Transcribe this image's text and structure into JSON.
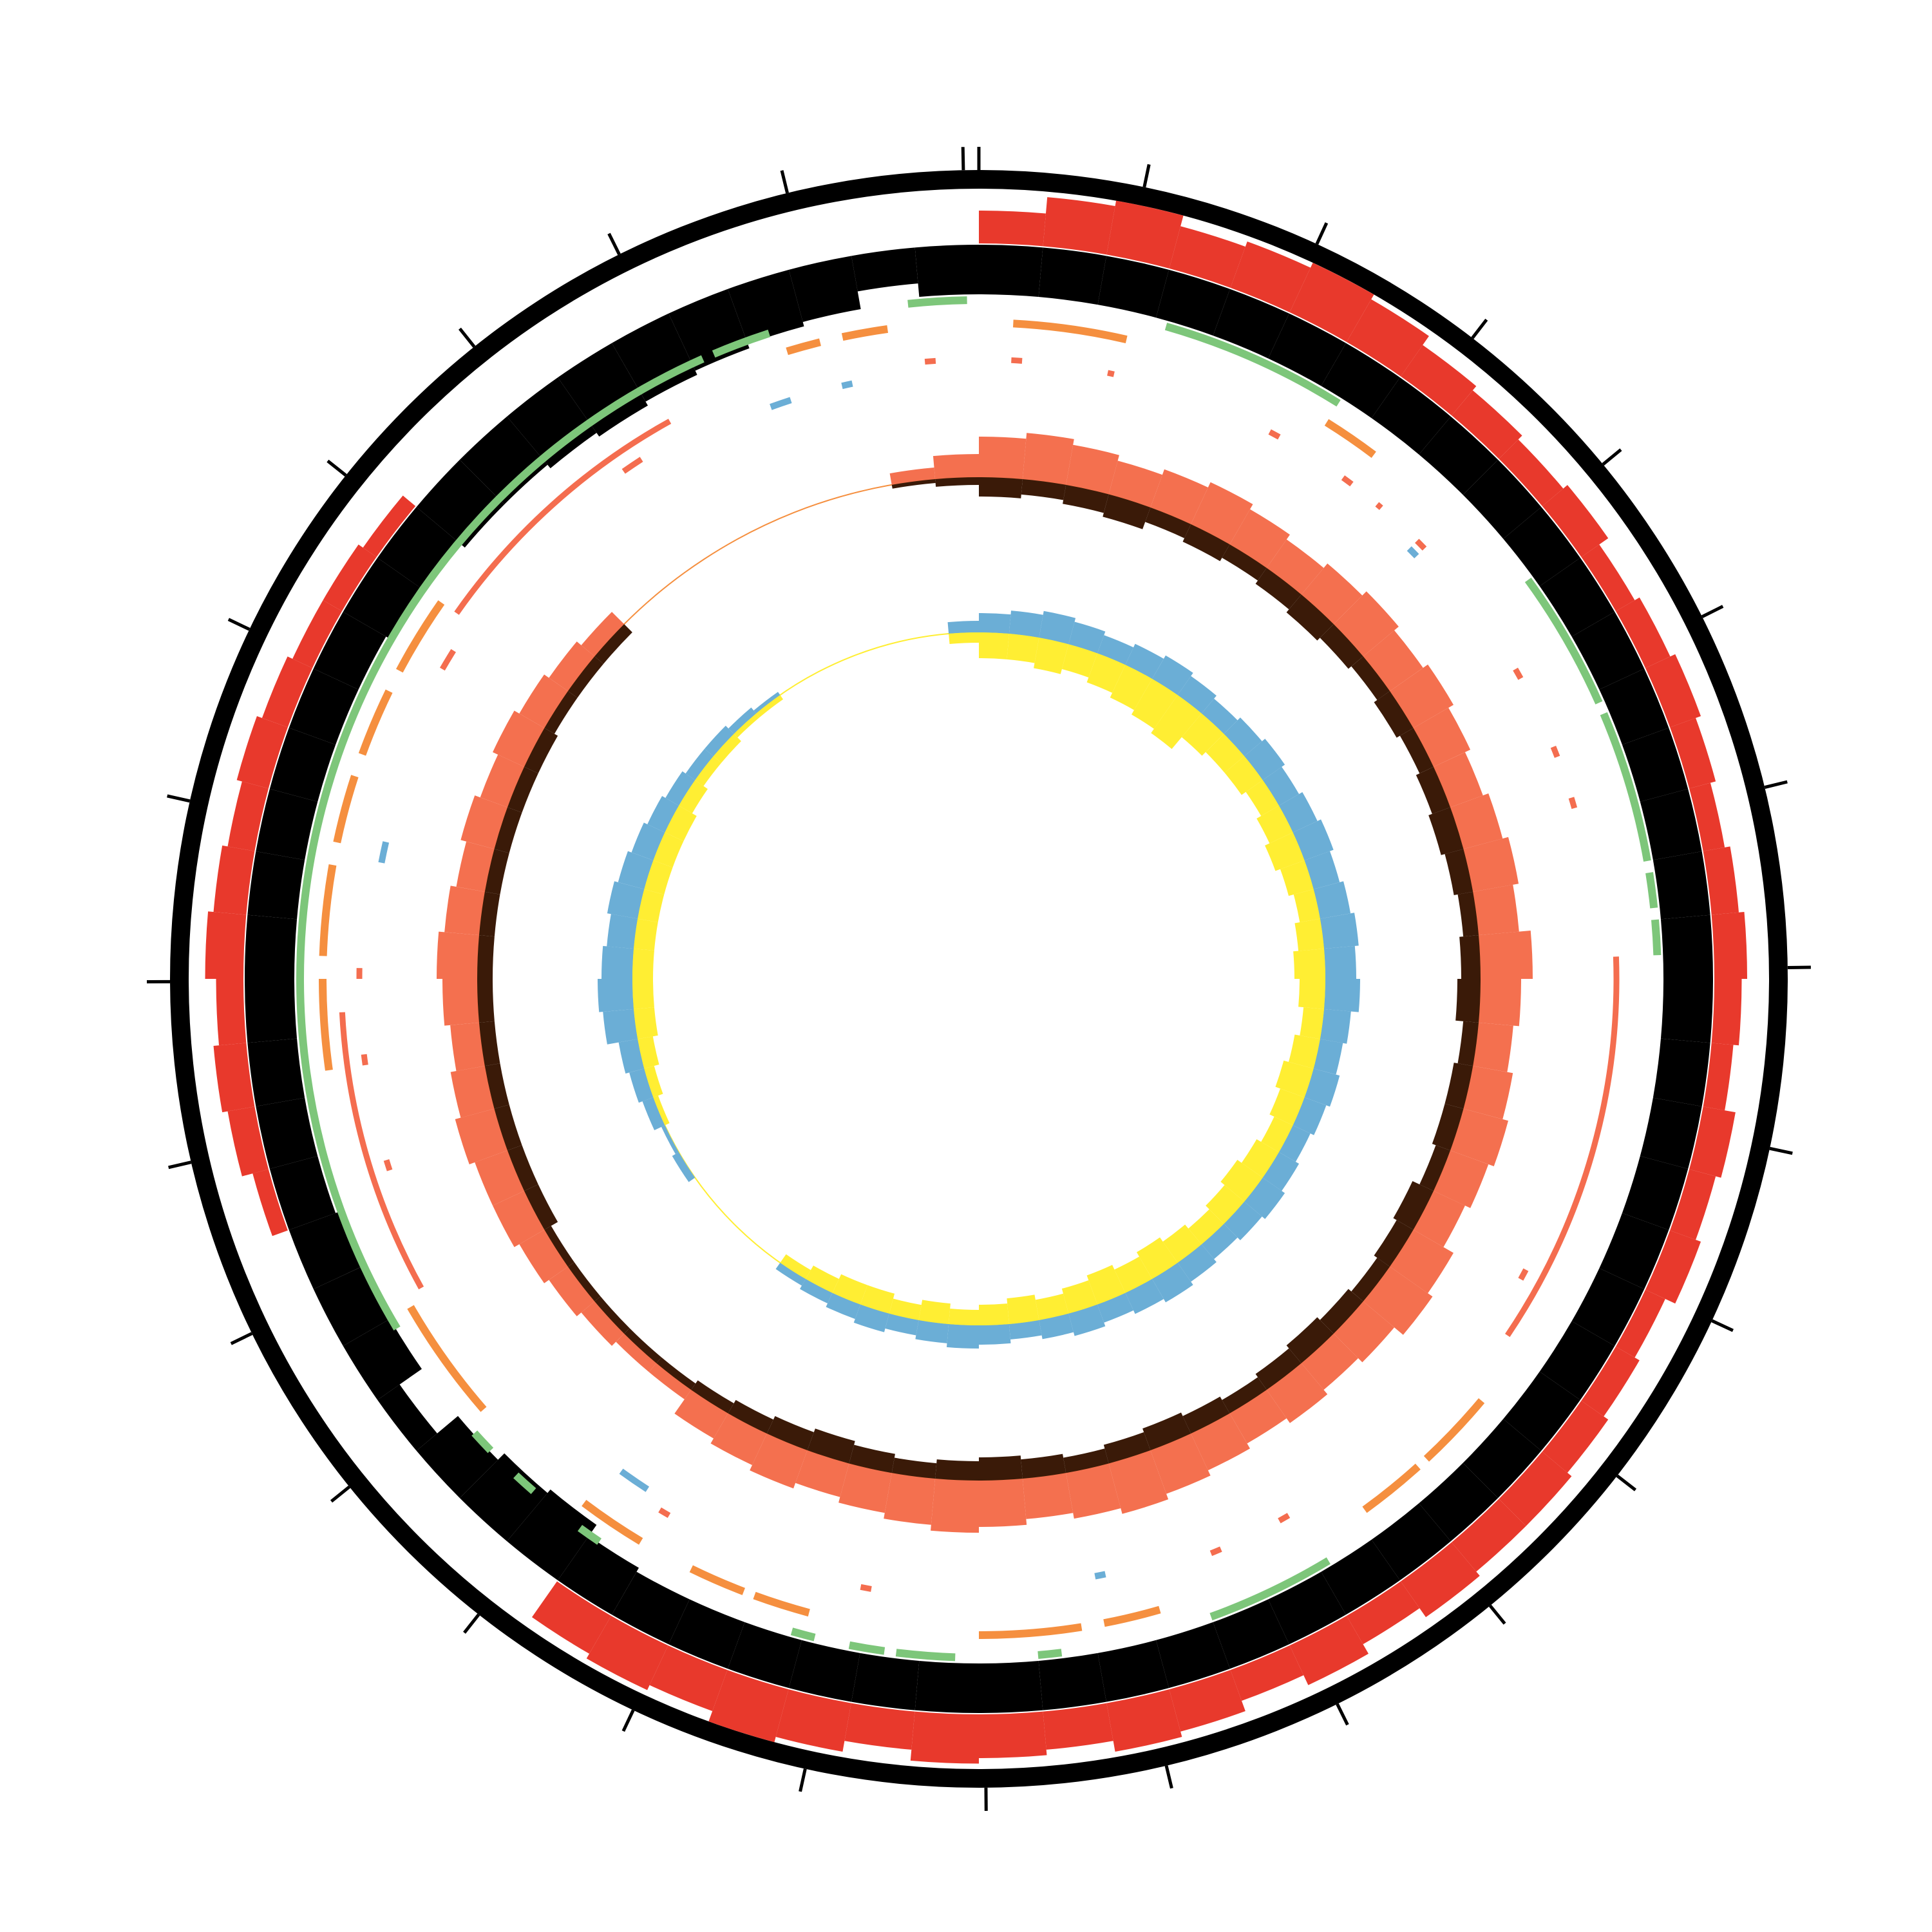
{
  "chart_data": {
    "type": "circos",
    "xlim": [
      0,
      360
    ],
    "ylim": [
      0,
      1
    ],
    "xticks": [
      0,
      11.8,
      24.7,
      37.6,
      50.5,
      63.4,
      76.3,
      89.2,
      102.1,
      115.0,
      127.9,
      140.8,
      153.7,
      166.6,
      179.5,
      192.4,
      205.3,
      218.2,
      231.1,
      244.0,
      256.9,
      269.8,
      282.7,
      295.6,
      308.5,
      321.4,
      333.6,
      346.3,
      358.9
    ],
    "bins": [
      0,
      5,
      10,
      15,
      20,
      25,
      30,
      35,
      40,
      45,
      50,
      55,
      60,
      65,
      70,
      75,
      80,
      85,
      90,
      95,
      100,
      105,
      110,
      115,
      120,
      125,
      130,
      135,
      140,
      145,
      150,
      155,
      160,
      165,
      170,
      175,
      180,
      185,
      190,
      195,
      200,
      205,
      210,
      215,
      220,
      225,
      230,
      235,
      240,
      245,
      250,
      255,
      260,
      265,
      270,
      275,
      280,
      285,
      290,
      295,
      300,
      305,
      310,
      315,
      320,
      325,
      330,
      335,
      340,
      345,
      350,
      355,
      360
    ],
    "tracks": [
      {
        "type": "histogram",
        "direction": "out",
        "color": "#e8392c",
        "values": [
          0.6,
          0.9,
          1,
          0.8,
          0.9,
          1,
          0.9,
          0.7,
          0.6,
          0.5,
          0.6,
          0.4,
          0.5,
          0.6,
          0.5,
          0.4,
          0.5,
          0.6,
          0.5,
          0.4,
          0.6,
          0.5,
          0.6,
          0.4,
          0.5,
          0.6,
          0.7,
          0.7,
          0.8,
          0.6,
          0.8,
          0.6,
          0.8,
          0.9,
          0.7,
          0.8,
          0.9,
          0.7,
          0.9,
          1,
          0.8,
          0.9,
          0.8,
          0,
          0,
          0,
          0,
          0,
          0,
          0,
          0.3,
          0.5,
          0.6,
          0.5,
          0.7,
          0.6,
          0.5,
          0.6,
          0.5,
          0.4,
          0.4,
          0.3,
          0,
          0,
          0,
          0,
          0,
          0,
          0,
          0,
          0,
          0
        ]
      },
      {
        "type": "histogram",
        "direction": "in",
        "color": "#000000",
        "values": [
          0.55,
          0.55,
          0.55,
          0.55,
          0.55,
          0.55,
          0.55,
          0.55,
          0.55,
          0.55,
          0.55,
          0.55,
          0.55,
          0.55,
          0.55,
          0.55,
          0.55,
          0.55,
          0.55,
          0.55,
          0.55,
          0.55,
          0.55,
          0.55,
          0.55,
          0.55,
          0.55,
          0.55,
          0.55,
          0.55,
          0.55,
          0.55,
          0.55,
          0.55,
          0.55,
          0.55,
          0.55,
          0.55,
          0.55,
          0.55,
          0.55,
          0.55,
          0.6,
          0.75,
          0.7,
          0.6,
          0.3,
          0.6,
          0.65,
          0.6,
          0.55,
          0.55,
          0.55,
          0.55,
          0.55,
          0.55,
          0.55,
          0.55,
          0.55,
          0.55,
          0.6,
          0.65,
          0.7,
          0.7,
          0.75,
          0.8,
          0.75,
          0.7,
          0.65,
          0.6,
          0.4,
          0.55
        ]
      },
      {
        "type": "arcs",
        "color": "#7dc67a",
        "segments": [
          [
            354,
            359
          ],
          [
            337,
            342
          ],
          [
            239,
            336
          ],
          [
            226,
            228
          ],
          [
            221,
            223
          ],
          [
            214,
            216
          ],
          [
            194,
            196
          ],
          [
            188,
            191
          ],
          [
            182,
            187
          ],
          [
            173,
            175
          ],
          [
            149,
            160
          ],
          [
            54,
            66
          ],
          [
            67,
            80
          ],
          [
            81,
            84
          ],
          [
            85,
            88
          ],
          [
            16,
            32
          ]
        ]
      },
      {
        "type": "arcs",
        "color": "#f58f3f",
        "segments": [
          [
            343,
            346
          ],
          [
            348,
            352
          ],
          [
            3,
            13
          ],
          [
            32,
            37
          ],
          [
            130,
            137
          ],
          [
            138,
            144
          ],
          [
            164,
            169
          ],
          [
            171,
            180
          ],
          [
            195,
            200
          ],
          [
            201,
            206
          ],
          [
            211,
            217
          ],
          [
            229,
            240
          ],
          [
            262,
            270
          ],
          [
            272,
            280
          ],
          [
            282,
            288
          ],
          [
            290,
            296
          ],
          [
            298,
            305
          ]
        ]
      },
      {
        "type": "arcs",
        "color": "#f46d4f",
        "segments": [
          [
            88,
            124
          ],
          [
            305,
            331
          ],
          [
            241,
            267
          ]
        ]
      },
      {
        "type": "arcs",
        "color": "#f46d4f",
        "segments": [
          [
            355,
            356
          ],
          [
            3,
            4
          ],
          [
            12,
            12.6
          ],
          [
            28,
            29
          ],
          [
            36,
            37
          ],
          [
            40,
            40.5
          ],
          [
            45,
            46
          ],
          [
            60,
            61
          ],
          [
            68,
            69
          ],
          [
            73,
            74
          ],
          [
            118,
            119
          ],
          [
            150,
            151
          ],
          [
            157,
            158
          ],
          [
            190,
            191
          ],
          [
            210,
            211
          ],
          [
            252,
            253
          ],
          [
            262,
            263
          ],
          [
            270,
            271
          ],
          [
            300,
            302
          ],
          [
            325,
            327
          ]
        ]
      },
      {
        "type": "arcs",
        "color": "#6baed6",
        "segments": [
          [
            340,
            342
          ],
          [
            347,
            348
          ],
          [
            281,
            283
          ],
          [
            213,
            216
          ],
          [
            45,
            46
          ],
          [
            168,
            169
          ]
        ]
      },
      {
        "type": "histogram",
        "direction": "out",
        "color": "#f4704f",
        "baseline_color": "#f58f3f",
        "values": [
          0.7,
          0.8,
          0.7,
          0.6,
          0.7,
          0.8,
          0.7,
          0.6,
          0.7,
          0.8,
          0.7,
          0.8,
          0.7,
          0.6,
          0.7,
          0.8,
          0.7,
          0.9,
          0.7,
          0.6,
          0.7,
          0.8,
          0.7,
          0.6,
          0.8,
          0.9,
          0.7,
          0.6,
          0.7,
          0.6,
          0.7,
          0.8,
          0.9,
          0.8,
          0.7,
          0.8,
          0.9,
          0.8,
          0.7,
          0.6,
          0.7,
          0.6,
          0.5,
          0.2,
          0.2,
          0.3,
          0.4,
          0.5,
          0.6,
          0.6,
          0.7,
          0.6,
          0.5,
          0.6,
          0.7,
          0.6,
          0.5,
          0.6,
          0.5,
          0.6,
          0.5,
          0.4,
          0.3,
          0,
          0,
          0,
          0,
          0,
          0,
          0,
          0.2,
          0.4
        ]
      },
      {
        "type": "histogram",
        "direction": "in",
        "color": "#3a1a08",
        "values": [
          0.5,
          0.4,
          0.5,
          0.6,
          0.4,
          0.5,
          0.4,
          0.5,
          0.6,
          0.5,
          0.4,
          0.5,
          0.4,
          0.5,
          0.6,
          0.5,
          0.4,
          0.5,
          0.6,
          0.4,
          0.5,
          0.5,
          0.4,
          0.6,
          0.5,
          0.4,
          0.5,
          0.6,
          0.5,
          0.4,
          0.5,
          0.6,
          0.5,
          0.4,
          0.5,
          0.6,
          0.5,
          0.4,
          0.5,
          0.6,
          0.5,
          0.4,
          0.3,
          0.2,
          0.2,
          0.2,
          0.2,
          0.2,
          0.4,
          0.4,
          0.4,
          0.4,
          0.4,
          0.4,
          0.4,
          0.4,
          0.4,
          0.4,
          0.4,
          0.4,
          0.3,
          0.3,
          0.3,
          0,
          0,
          0,
          0,
          0,
          0,
          0,
          0.1,
          0.2
        ]
      },
      {
        "type": "histogram",
        "direction": "out",
        "color": "#6baed6",
        "baseline_color": "#ffee33",
        "values": [
          0.5,
          0.6,
          0.7,
          0.6,
          0.5,
          0.6,
          0.7,
          0.6,
          0.5,
          0.6,
          0.7,
          0.6,
          0.7,
          0.8,
          0.7,
          0.8,
          0.9,
          0.8,
          0.9,
          0.7,
          0.6,
          0.7,
          0.6,
          0.5,
          0.6,
          0.7,
          0.6,
          0.5,
          0.6,
          0.7,
          0.6,
          0.5,
          0.6,
          0.5,
          0.4,
          0.5,
          0.6,
          0.5,
          0.4,
          0.5,
          0.4,
          0.3,
          0.2,
          0,
          0,
          0,
          0,
          0.2,
          0.1,
          0.3,
          0.4,
          0.5,
          0.8,
          0.9,
          0.8,
          0.7,
          0.8,
          0.7,
          0.6,
          0.5,
          0.4,
          0.3,
          0.3,
          0.2,
          0.1,
          0,
          0,
          0,
          0,
          0,
          0,
          0.3
        ]
      },
      {
        "type": "histogram",
        "direction": "in",
        "color": "#ffee33",
        "values": [
          0.5,
          0.5,
          0.6,
          0.5,
          0.6,
          0.7,
          0.8,
          0.9,
          0.6,
          0.5,
          0.5,
          0.4,
          0.5,
          0.6,
          0.5,
          0.4,
          0.5,
          0.6,
          0.5,
          0.4,
          0.5,
          0.6,
          0.5,
          0.4,
          0.5,
          0.6,
          0.5,
          0.4,
          0.5,
          0.6,
          0.5,
          0.6,
          0.5,
          0.4,
          0.5,
          0.4,
          0.3,
          0.4,
          0.3,
          0.4,
          0.4,
          0.3,
          0.2,
          0,
          0,
          0,
          0,
          0,
          0,
          0.1,
          0.2,
          0.3,
          0.4,
          0.4,
          0.4,
          0.4,
          0.4,
          0.4,
          0.4,
          0.4,
          0.3,
          0.2,
          0.2,
          0.1,
          0.1,
          0,
          0,
          0,
          0,
          0,
          0,
          0.2
        ]
      }
    ]
  }
}
